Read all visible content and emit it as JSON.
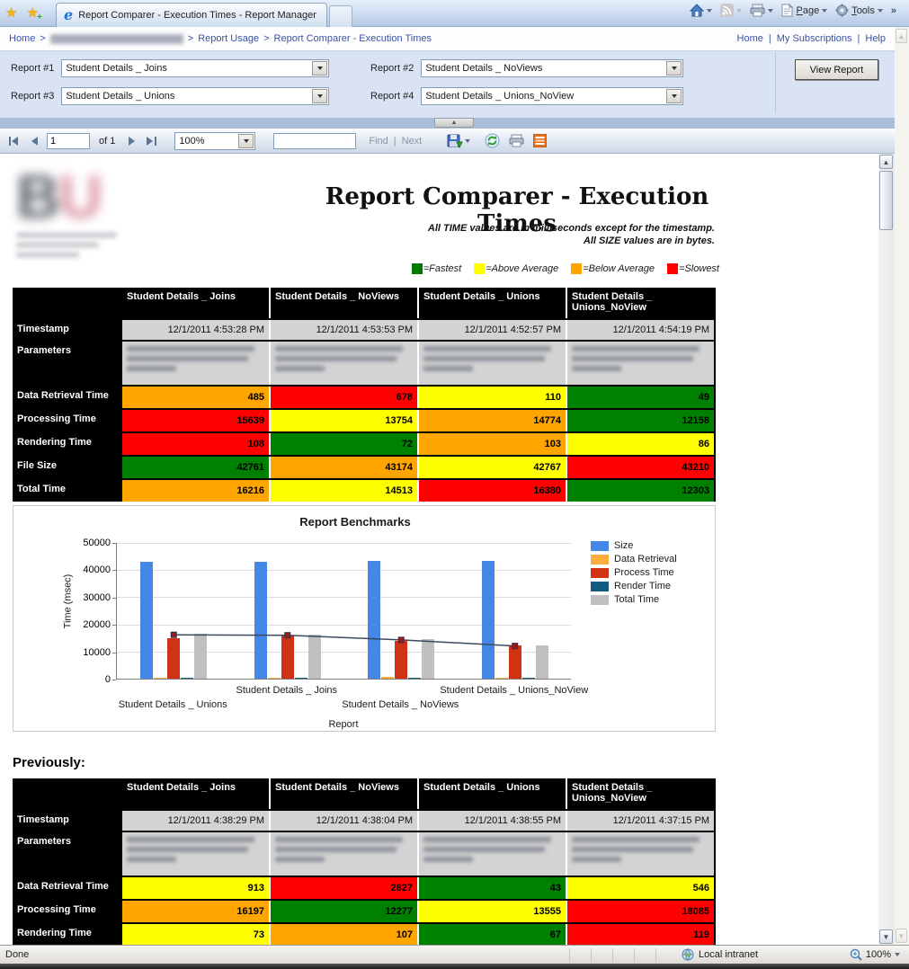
{
  "window": {
    "tab_title": "Report Comparer - Execution Times - Report Manager",
    "page_menu": "Page",
    "tools_menu": "Tools",
    "overflow_chevron": "»"
  },
  "breadcrumb": {
    "home": "Home",
    "separator": ">",
    "report_usage": "Report Usage",
    "current": "Report Comparer - Execution Times"
  },
  "top_links": [
    "Home",
    "My Subscriptions",
    "Help"
  ],
  "params": {
    "report1_label": "Report #1",
    "report1_value": "Student Details _ Joins",
    "report2_label": "Report #2",
    "report2_value": "Student Details _ NoViews",
    "report3_label": "Report #3",
    "report3_value": "Student Details _ Unions",
    "report4_label": "Report #4",
    "report4_value": "Student Details _ Unions_NoView",
    "view_report": "View Report"
  },
  "viewer_toolbar": {
    "page_value": "1",
    "of_label": "of 1",
    "zoom_value": "100%",
    "find_label": "Find",
    "separator": "|",
    "next_label": "Next"
  },
  "report": {
    "logo_text_b": "B",
    "logo_text_u": "U",
    "title": "Report Comparer - Execution Times",
    "subtitle1": "All TIME values are in milliseconds except for the timestamp.",
    "subtitle2": "All SIZE values are in bytes.",
    "legend": [
      {
        "label": "=Fastest",
        "color": "#007B00"
      },
      {
        "label": "=Above Average",
        "color": "#FFFF00"
      },
      {
        "label": "=Below Average",
        "color": "#FFA500"
      },
      {
        "label": "=Slowest",
        "color": "#FF0000"
      }
    ],
    "previously_label": "Previously:",
    "columns": [
      "Student Details _ Joins",
      "Student Details _ NoViews",
      "Student Details _ Unions",
      "Student Details _ Unions_NoView"
    ],
    "row_labels": {
      "timestamp": "Timestamp",
      "parameters": "Parameters"
    },
    "status_colors": {
      "green": "#008000",
      "yellow": "#FFFF00",
      "orange": "#FFA500",
      "red": "#FF0000"
    },
    "tables": {
      "current": {
        "timestamps": [
          "12/1/2011 4:53:28 PM",
          "12/1/2011 4:53:53 PM",
          "12/1/2011 4:52:57 PM",
          "12/1/2011 4:54:19 PM"
        ],
        "rows": [
          {
            "label": "Data Retrieval Time",
            "values": [
              "485",
              "678",
              "110",
              "49"
            ],
            "colors": [
              "orange",
              "red",
              "yellow",
              "green"
            ]
          },
          {
            "label": "Processing Time",
            "values": [
              "15639",
              "13754",
              "14774",
              "12158"
            ],
            "colors": [
              "red",
              "yellow",
              "orange",
              "green"
            ]
          },
          {
            "label": "Rendering Time",
            "values": [
              "108",
              "72",
              "103",
              "86"
            ],
            "colors": [
              "red",
              "green",
              "orange",
              "yellow"
            ]
          },
          {
            "label": "File Size",
            "values": [
              "42761",
              "43174",
              "42767",
              "43210"
            ],
            "colors": [
              "green",
              "orange",
              "yellow",
              "red"
            ]
          },
          {
            "label": "Total Time",
            "values": [
              "16216",
              "14513",
              "16380",
              "12303"
            ],
            "colors": [
              "orange",
              "yellow",
              "red",
              "green"
            ]
          }
        ]
      },
      "previous": {
        "timestamps": [
          "12/1/2011 4:38:29 PM",
          "12/1/2011 4:38:04 PM",
          "12/1/2011 4:38:55 PM",
          "12/1/2011 4:37:15 PM"
        ],
        "rows": [
          {
            "label": "Data Retrieval Time",
            "values": [
              "913",
              "2827",
              "43",
              "546"
            ],
            "colors": [
              "yellow",
              "red",
              "green",
              "yellow"
            ]
          },
          {
            "label": "Processing Time",
            "values": [
              "16197",
              "12277",
              "13555",
              "18085"
            ],
            "colors": [
              "orange",
              "green",
              "yellow",
              "red"
            ]
          },
          {
            "label": "Rendering Time",
            "values": [
              "73",
              "107",
              "67",
              "119"
            ],
            "colors": [
              "yellow",
              "orange",
              "green",
              "red"
            ]
          }
        ]
      }
    }
  },
  "chart_data": {
    "type": "bar",
    "title": "Report Benchmarks",
    "xlabel": "Report",
    "ylabel": "Time (msec)",
    "ylim": [
      0,
      50000
    ],
    "yticks": [
      0,
      10000,
      20000,
      30000,
      40000,
      50000
    ],
    "grid": true,
    "legend_position": "right",
    "categories": [
      "Student Details _ Unions",
      "Student Details _ Joins",
      "Student Details _ NoViews",
      "Student Details _ Unions_NoView"
    ],
    "series": [
      {
        "name": "Size",
        "color": "#4487E6",
        "values": [
          42767,
          42761,
          43174,
          43210
        ]
      },
      {
        "name": "Data Retrieval",
        "color": "#FBAE3D",
        "values": [
          110,
          485,
          678,
          49
        ]
      },
      {
        "name": "Process Time",
        "color": "#D23214",
        "values": [
          14774,
          15639,
          13754,
          12158
        ]
      },
      {
        "name": "Render Time",
        "color": "#135C80",
        "values": [
          103,
          108,
          72,
          86
        ]
      },
      {
        "name": "Total Time",
        "color": "#C0C0C0",
        "values": [
          16380,
          16216,
          14513,
          12303
        ]
      }
    ],
    "line_overlay": {
      "name": "Total Time trend",
      "color": "#3C4A60",
      "marker_color": "#9B1B1B",
      "values": [
        16380,
        16216,
        14513,
        12303
      ]
    }
  },
  "status_bar": {
    "done": "Done",
    "zone": "Local intranet",
    "zoom": "100%"
  }
}
